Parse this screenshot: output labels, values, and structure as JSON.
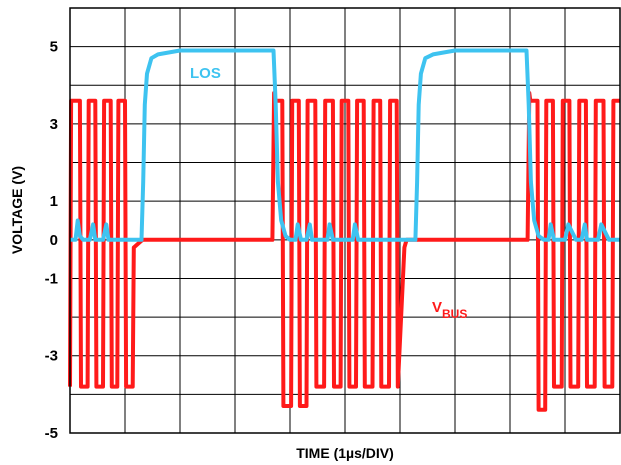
{
  "chart_data": {
    "type": "line",
    "title": "",
    "xlabel": "TIME (1µs/DIV)",
    "ylabel": "VOLTAGE (V)",
    "x_unit_note": "1µs/DIV",
    "xlim": [
      0,
      10
    ],
    "ylim": [
      -5,
      6
    ],
    "y_ticks": [
      5,
      3,
      1,
      0,
      -1,
      -3,
      -5
    ],
    "grid": true,
    "series": [
      {
        "name": "VBUS",
        "label_main": "V",
        "label_sub": "BUS",
        "color": "#ff1a1a",
        "x": [
          0.0,
          0.02,
          0.04,
          0.18,
          0.2,
          0.32,
          0.34,
          0.46,
          0.48,
          0.6,
          0.62,
          0.74,
          0.76,
          0.86,
          0.88,
          1.0,
          1.02,
          1.14,
          1.16,
          1.32,
          1.36,
          3.68,
          3.71,
          3.73,
          3.86,
          3.88,
          4.02,
          4.04,
          4.16,
          4.18,
          4.3,
          4.32,
          4.46,
          4.48,
          4.62,
          4.64,
          4.78,
          4.8,
          4.92,
          4.94,
          5.06,
          5.08,
          5.2,
          5.22,
          5.34,
          5.36,
          5.5,
          5.52,
          5.64,
          5.66,
          5.8,
          5.82,
          5.94,
          5.96,
          6.08,
          6.12,
          8.32,
          8.35,
          8.37,
          8.5,
          8.52,
          8.64,
          8.66,
          8.78,
          8.8,
          8.94,
          8.96,
          9.08,
          9.1,
          9.24,
          9.26,
          9.38,
          9.4,
          9.54,
          9.56,
          9.7,
          9.72,
          9.86,
          9.88,
          10.0
        ],
        "y": [
          -3.8,
          3.6,
          3.6,
          3.6,
          -3.8,
          -3.8,
          3.6,
          3.6,
          -3.8,
          -3.8,
          3.6,
          3.6,
          -3.8,
          -3.8,
          3.6,
          3.6,
          -3.8,
          -3.8,
          -0.2,
          0.0,
          0.0,
          0.0,
          3.8,
          3.6,
          3.6,
          -4.3,
          -4.3,
          3.6,
          3.6,
          -4.3,
          -4.3,
          3.6,
          3.6,
          -3.8,
          -3.8,
          3.6,
          3.6,
          -3.8,
          -3.8,
          3.6,
          3.6,
          -3.8,
          -3.8,
          3.6,
          3.6,
          -3.8,
          -3.8,
          3.6,
          3.6,
          -3.8,
          -3.8,
          3.6,
          3.6,
          -3.8,
          -0.2,
          0.0,
          0.0,
          3.8,
          3.6,
          3.6,
          -4.4,
          -4.4,
          3.6,
          3.6,
          -3.8,
          -3.8,
          3.6,
          3.6,
          -3.8,
          -3.8,
          3.6,
          3.6,
          -3.8,
          -3.8,
          3.6,
          3.6,
          -3.8,
          -3.8,
          3.6,
          3.6
        ]
      },
      {
        "name": "LOS",
        "label_main": "LOS",
        "color": "#3ec3f0",
        "x": [
          0.0,
          0.1,
          0.14,
          0.18,
          0.24,
          0.36,
          0.42,
          0.46,
          0.6,
          0.66,
          0.7,
          0.8,
          0.95,
          1.3,
          1.33,
          1.36,
          1.4,
          1.48,
          1.6,
          2.0,
          2.5,
          3.0,
          3.5,
          3.7,
          3.74,
          3.78,
          3.84,
          3.92,
          4.0,
          4.1,
          4.14,
          4.2,
          4.3,
          4.36,
          4.4,
          4.5,
          4.68,
          4.72,
          4.78,
          4.9,
          5.14,
          5.18,
          5.24,
          5.4,
          5.8,
          6.28,
          6.31,
          6.34,
          6.38,
          6.46,
          6.6,
          7.0,
          7.5,
          8.0,
          8.3,
          8.34,
          8.38,
          8.44,
          8.52,
          8.62,
          8.7,
          8.74,
          8.8,
          8.9,
          9.0,
          9.06,
          9.2,
          9.3,
          9.36,
          9.4,
          9.5,
          9.6,
          9.66,
          9.8,
          9.92,
          10.0
        ],
        "y": [
          0.0,
          0.0,
          0.5,
          0.1,
          0.0,
          0.0,
          0.4,
          0.0,
          0.0,
          0.4,
          0.0,
          0.0,
          0.0,
          0.0,
          1.5,
          3.5,
          4.3,
          4.7,
          4.8,
          4.9,
          4.9,
          4.9,
          4.9,
          4.9,
          3.5,
          1.5,
          0.5,
          0.1,
          0.0,
          0.0,
          0.4,
          0.0,
          0.0,
          0.4,
          0.0,
          0.0,
          0.0,
          0.4,
          0.0,
          0.0,
          0.0,
          0.4,
          0.0,
          0.0,
          0.0,
          0.0,
          1.5,
          3.5,
          4.3,
          4.7,
          4.8,
          4.9,
          4.9,
          4.9,
          4.9,
          3.5,
          1.5,
          0.5,
          0.1,
          0.0,
          0.0,
          0.4,
          0.0,
          0.0,
          0.0,
          0.4,
          0.0,
          0.0,
          0.4,
          0.0,
          0.0,
          0.0,
          0.4,
          0.0,
          0.0,
          0.0
        ]
      }
    ]
  }
}
